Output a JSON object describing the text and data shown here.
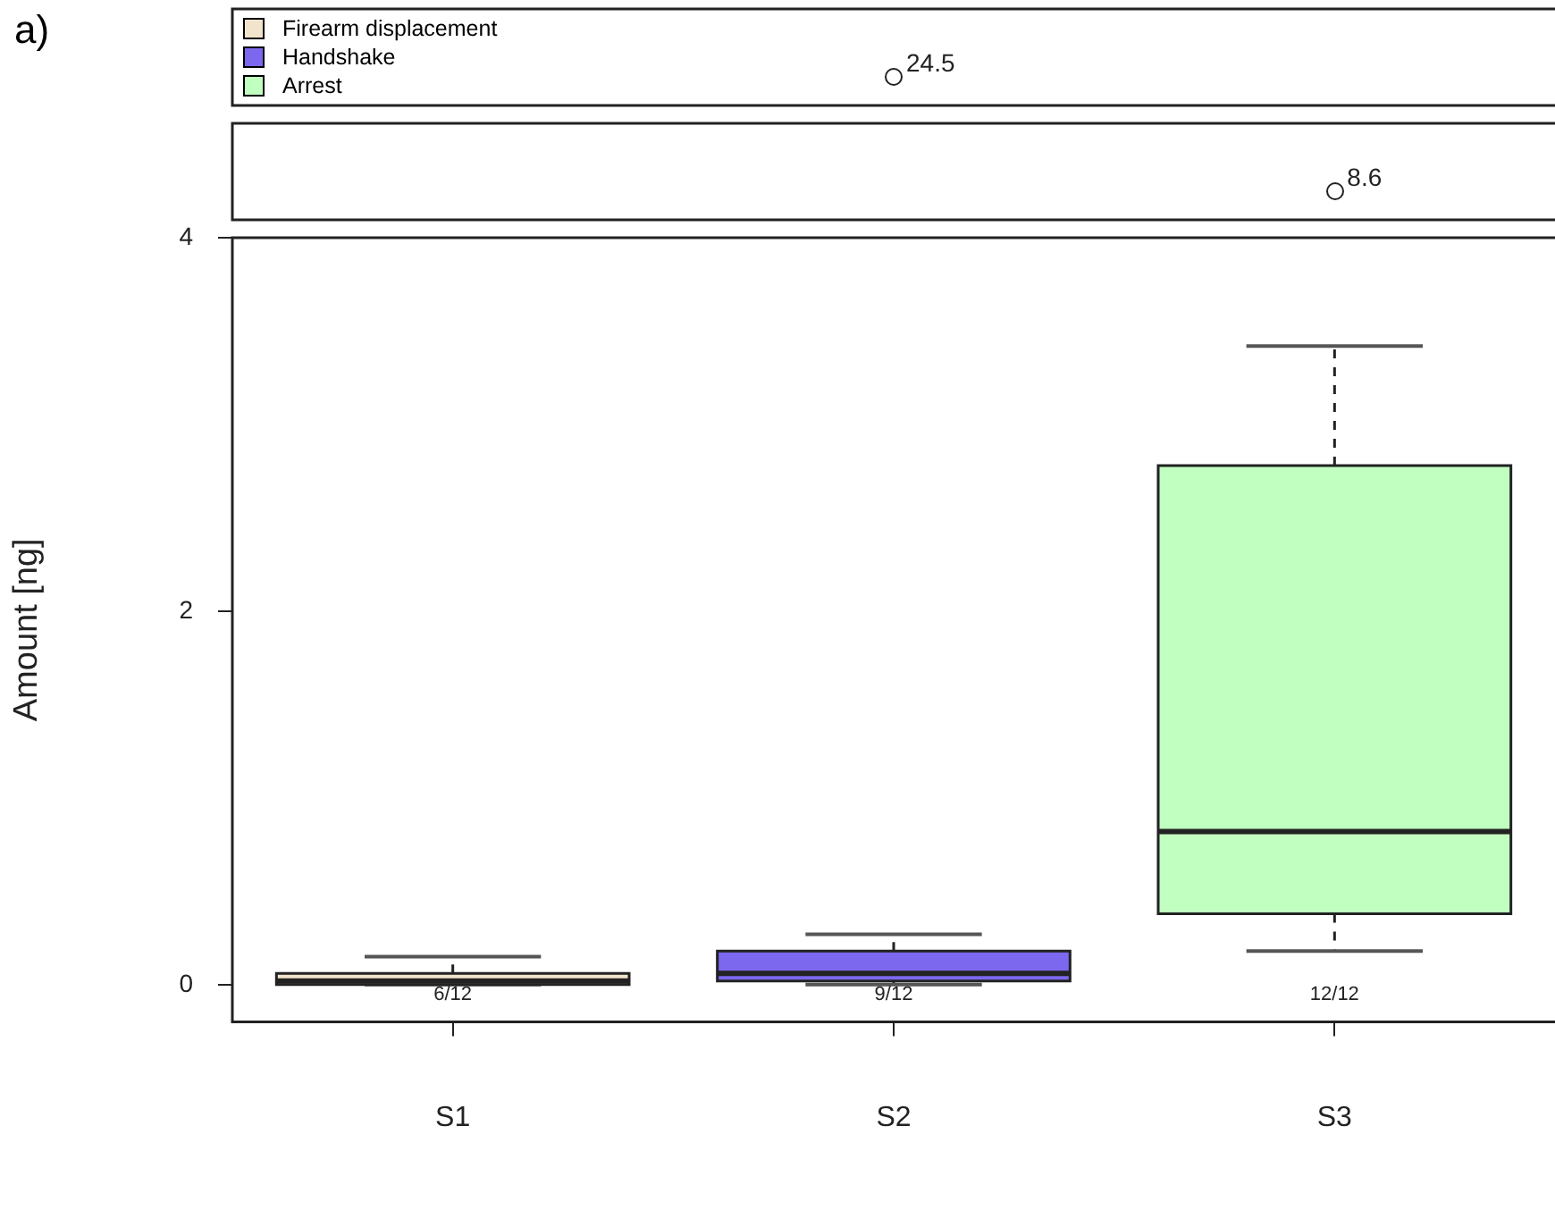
{
  "chart_data": {
    "type": "box",
    "ylabel": "Amount [ng]",
    "categories": [
      "S1",
      "S2",
      "S3"
    ],
    "ylim": [
      -0.2,
      4.0
    ],
    "yticks": [
      0,
      2,
      4
    ],
    "grid": false,
    "legend": "top left",
    "series": [
      {
        "name": "Firearm displacement",
        "color": "#f2e4cc",
        "boxes": [
          {
            "low": 0.0,
            "q1": 0.0,
            "median": 0.02,
            "q3": 0.06,
            "high": 0.15
          },
          null,
          null
        ]
      },
      {
        "name": "Handshake",
        "color": "#7b68ee",
        "boxes": [
          null,
          {
            "low": 0.0,
            "q1": 0.02,
            "median": 0.06,
            "q3": 0.18,
            "high": 0.27
          },
          null
        ]
      },
      {
        "name": "Arrest",
        "color": "#c1ffc1",
        "boxes": [
          null,
          null,
          {
            "low": 0.18,
            "q1": 0.38,
            "median": 0.82,
            "q3": 2.78,
            "high": 3.42
          }
        ]
      }
    ],
    "annotations": [
      "a)",
      "6/12",
      "9/12",
      "12/12",
      "24.5",
      "8.6"
    ]
  }
}
